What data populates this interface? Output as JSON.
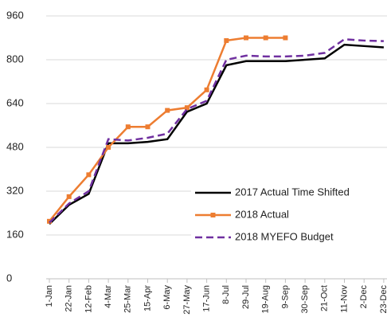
{
  "chart_data": {
    "type": "line",
    "categories": [
      "1-Jan",
      "22-Jan",
      "12-Feb",
      "4-Mar",
      "25-Mar",
      "15-Apr",
      "6-May",
      "27-May",
      "17-Jun",
      "8-Jul",
      "29-Jul",
      "19-Aug",
      "9-Sep",
      "30-Sep",
      "21-Oct",
      "11-Nov",
      "2-Dec",
      "23-Dec"
    ],
    "series": [
      {
        "name": "2017 Actual Time Shifted",
        "color": "#000000",
        "dash": false,
        "marker": false,
        "values": [
          200,
          270,
          310,
          495,
          495,
          500,
          510,
          610,
          640,
          780,
          795,
          795,
          795,
          800,
          805,
          855,
          850,
          845
        ]
      },
      {
        "name": "2018 Actual",
        "color": "#ed7d31",
        "dash": false,
        "marker": true,
        "values": [
          210,
          300,
          380,
          480,
          555,
          555,
          615,
          625,
          690,
          870,
          880,
          880,
          880,
          null,
          null,
          null,
          null,
          null
        ]
      },
      {
        "name": "2018 MYEFO Budget",
        "color": "#7030a0",
        "dash": true,
        "marker": false,
        "values": [
          205,
          275,
          320,
          510,
          505,
          515,
          530,
          620,
          650,
          800,
          815,
          812,
          812,
          815,
          825,
          875,
          870,
          868
        ]
      }
    ],
    "ylim": [
      0,
      960
    ],
    "yticks": [
      0,
      160,
      320,
      480,
      640,
      800,
      960
    ],
    "grid": true
  }
}
